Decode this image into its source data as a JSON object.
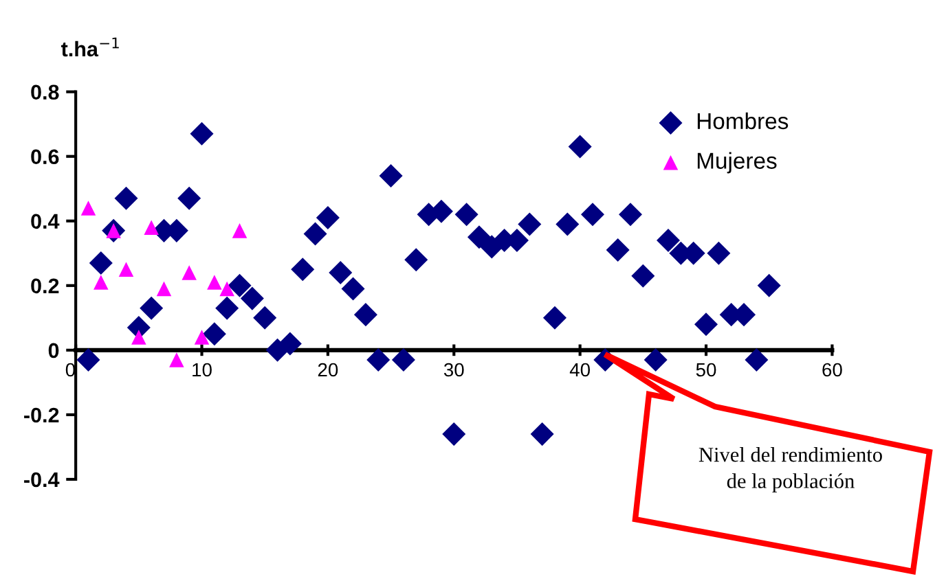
{
  "chart_data": {
    "type": "scatter",
    "ylabel": "t.ha$^{−1}$",
    "xlim": [
      0,
      60
    ],
    "xticks": [
      0,
      10,
      20,
      30,
      40,
      50,
      60
    ],
    "ylim": [
      -0.4,
      0.8
    ],
    "yticks": [
      -0.4,
      -0.2,
      0,
      0.2,
      0.4,
      0.6,
      0.8
    ],
    "grid": false,
    "legend": "top right",
    "annotations": [
      "Nivel del rendimiento\nde la población"
    ],
    "series": [
      {
        "name": "Hombres",
        "color": "#000080",
        "marker": "diamond",
        "x": [
          1,
          2,
          3,
          4,
          5,
          6,
          7,
          8,
          9,
          10,
          11,
          12,
          13,
          14,
          15,
          16,
          17,
          18,
          19,
          20,
          21,
          22,
          23,
          24,
          25,
          26,
          27,
          28,
          29,
          30,
          31,
          32,
          33,
          34,
          35,
          36,
          37,
          38,
          39,
          40,
          41,
          42,
          43,
          44,
          45,
          46,
          47,
          48,
          49,
          50,
          51,
          52,
          53,
          54,
          55
        ],
        "values": [
          -0.03,
          0.27,
          0.37,
          0.47,
          0.07,
          0.13,
          0.37,
          0.37,
          0.47,
          0.67,
          0.05,
          0.13,
          0.2,
          0.16,
          0.1,
          0,
          0.02,
          0.25,
          0.36,
          0.41,
          0.24,
          0.19,
          0.11,
          -0.03,
          0.54,
          -0.03,
          0.28,
          0.42,
          0.43,
          -0.26,
          0.42,
          0.35,
          0.32,
          0.34,
          0.34,
          0.39,
          -0.26,
          0.1,
          0.39,
          0.63,
          0.42,
          -0.03,
          0.31,
          0.42,
          0.23,
          -0.03,
          0.34,
          0.3,
          0.3,
          0.08,
          0.3,
          0.11,
          0.11,
          -0.03,
          0.2
        ]
      },
      {
        "name": "Mujeres",
        "color": "#ff00ff",
        "marker": "triangle",
        "x": [
          1,
          2,
          3,
          4,
          5,
          6,
          7,
          8,
          9,
          10,
          11,
          12,
          13
        ],
        "values": [
          0.44,
          0.21,
          0.37,
          0.25,
          0.04,
          0.38,
          0.19,
          -0.03,
          0.24,
          0.04,
          0.21,
          0.19,
          0.37
        ]
      }
    ]
  }
}
